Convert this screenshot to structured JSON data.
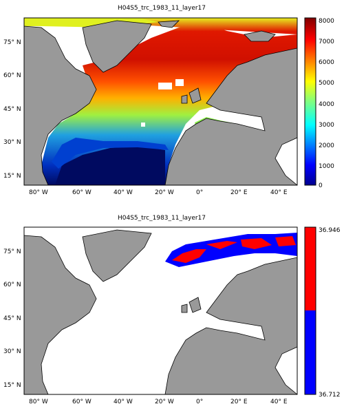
{
  "panels": [
    {
      "title": "H04S5_trc_1983_11_layer17",
      "lat_ticks": [
        "75° N",
        "60° N",
        "45° N",
        "30° N",
        "15° N"
      ],
      "lon_ticks": [
        "80° W",
        "60° W",
        "40° W",
        "20° W",
        "0°",
        "20° E",
        "40° E"
      ],
      "colorbar": {
        "scale": "jet",
        "ticks": [
          "8000",
          "7000",
          "6000",
          "5000",
          "4000",
          "3000",
          "2000",
          "1000",
          "0"
        ],
        "min": 0,
        "max": 8000
      }
    },
    {
      "title": "H04S5_trc_1983_11_layer17",
      "lat_ticks": [
        "75° N",
        "60° N",
        "45° N",
        "30° N",
        "15° N"
      ],
      "lon_ticks": [
        "80° W",
        "60° W",
        "40° W",
        "20° W",
        "0°",
        "20° E",
        "40° E"
      ],
      "colorbar": {
        "scale": "two-color",
        "colors": [
          "#ff0000",
          "#0000ff"
        ],
        "max_label": "36.946",
        "min_label": "36.712"
      }
    }
  ],
  "colors": {
    "land": "#999999",
    "no_data": "#ffffff"
  }
}
